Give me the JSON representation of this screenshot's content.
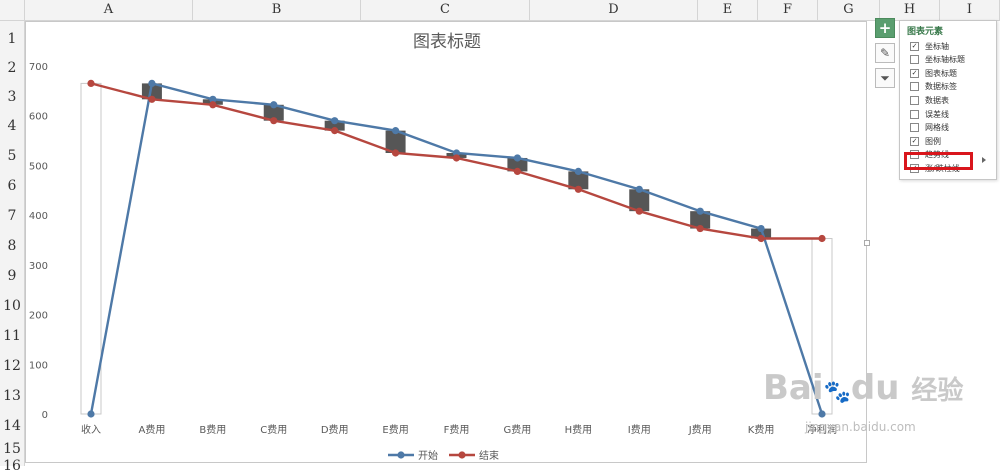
{
  "columns": [
    "A",
    "B",
    "C",
    "D",
    "E",
    "F",
    "G",
    "H",
    "I"
  ],
  "rows": [
    "1",
    "2",
    "3",
    "4",
    "5",
    "6",
    "7",
    "8",
    "9",
    "10",
    "11",
    "12",
    "13",
    "14",
    "15",
    "16"
  ],
  "colors": {
    "start_series": "#4e79a7",
    "end_series": "#b6473f",
    "box": "#565656",
    "accent": "#5a9e6f",
    "highlight": "#d9161c"
  },
  "chart_data": {
    "type": "line",
    "title": "图表标题",
    "categories": [
      "收入",
      "A费用",
      "B费用",
      "C费用",
      "D费用",
      "E费用",
      "F费用",
      "G费用",
      "H费用",
      "I费用",
      "J费用",
      "K费用",
      "净利润"
    ],
    "series": [
      {
        "name": "开始",
        "values": [
          0,
          665,
          633,
          622,
          590,
          570,
          525,
          515,
          488,
          452,
          408,
          373,
          0
        ]
      },
      {
        "name": "结束",
        "values": [
          665,
          633,
          622,
          590,
          570,
          525,
          515,
          488,
          452,
          408,
          373,
          353,
          353
        ]
      }
    ],
    "yticks": [
      0,
      100,
      200,
      300,
      400,
      500,
      600,
      700
    ],
    "ylim": [
      0,
      700
    ],
    "legend": "bottom",
    "grid": false,
    "up_down_bars": true
  },
  "panel": {
    "title": "图表元素",
    "options": [
      {
        "label": "坐标轴",
        "checked": true
      },
      {
        "label": "坐标轴标题",
        "checked": false
      },
      {
        "label": "图表标题",
        "checked": true
      },
      {
        "label": "数据标签",
        "checked": false
      },
      {
        "label": "数据表",
        "checked": false
      },
      {
        "label": "误差线",
        "checked": false
      },
      {
        "label": "网格线",
        "checked": false
      },
      {
        "label": "图例",
        "checked": true
      },
      {
        "label": "趋势线",
        "checked": false
      },
      {
        "label": "涨/跌柱线",
        "checked": true
      }
    ]
  },
  "side_buttons": [
    {
      "icon": "plus-icon",
      "glyph": "+"
    },
    {
      "icon": "brush-icon",
      "glyph": "✎"
    },
    {
      "icon": "filter-icon",
      "glyph": "⏷"
    }
  ],
  "watermark": {
    "brand": "Bai",
    "paw": "🐾",
    "du": "du",
    "cn": "经验",
    "url": "jingyan.baidu.com"
  }
}
